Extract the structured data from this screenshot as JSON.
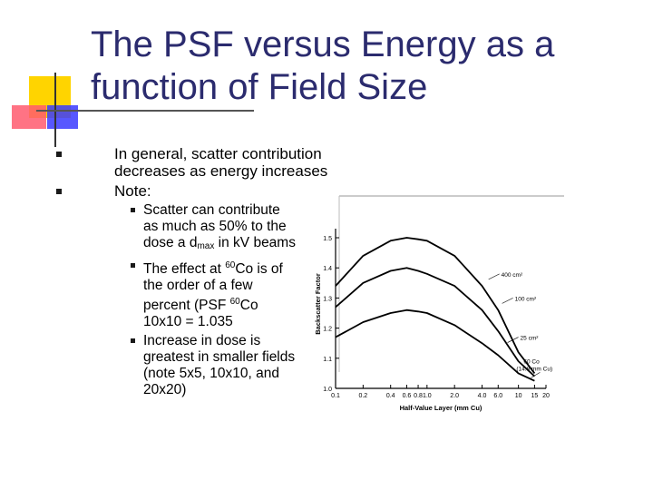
{
  "slide": {
    "title": "The PSF versus Energy as a function of Field Size",
    "colors": {
      "title": "#2b2b6e",
      "deco_yellow": "#ffd400",
      "deco_red": "#ff5a6e",
      "deco_blue": "#3a3aff"
    }
  },
  "bullets": [
    {
      "text": "In general, scatter contribution decreases as energy increases"
    },
    {
      "text": "Note:"
    }
  ],
  "sub_bullets": {
    "b1": {
      "a": "Scatter can contribute as much as 50% to the dose a d",
      "sub": "max",
      "b": " in kV beams"
    },
    "b2": {
      "a": "The effect at ",
      "sup1": "60",
      "b": "Co is of the order of a few percent (PSF ",
      "sup2": "60",
      "c": "Co 10x10 = 1.035"
    },
    "b3": {
      "text": "Increase in dose is greatest in smaller fields (note 5x5, 10x10, and 20x20)"
    }
  },
  "chart_data": {
    "type": "line",
    "xlabel": "Half-Value Layer (mm Cu)",
    "ylabel": "Backscatter Factor",
    "x_scale": "log",
    "xlim": [
      0.1,
      20
    ],
    "ylim": [
      1.0,
      1.5
    ],
    "x_ticks": [
      {
        "v": 0.1,
        "label": "0.1"
      },
      {
        "v": 0.2,
        "label": "0.2"
      },
      {
        "v": 0.4,
        "label": "0.4"
      },
      {
        "v": 0.6,
        "label": "0.6"
      },
      {
        "v": 0.8,
        "label": "0.8"
      },
      {
        "v": 1.0,
        "label": "1.0"
      },
      {
        "v": 2.0,
        "label": "2.0"
      },
      {
        "v": 4.0,
        "label": "4.0"
      },
      {
        "v": 6.0,
        "label": "6.0"
      },
      {
        "v": 10,
        "label": "10"
      },
      {
        "v": 15,
        "label": "15"
      },
      {
        "v": 20,
        "label": "20"
      }
    ],
    "y_ticks": [
      {
        "v": 1.0,
        "label": "1.0"
      },
      {
        "v": 1.1,
        "label": "1.1"
      },
      {
        "v": 1.2,
        "label": "1.2"
      },
      {
        "v": 1.3,
        "label": "1.3"
      },
      {
        "v": 1.4,
        "label": "1.4"
      },
      {
        "v": 1.5,
        "label": "1.5"
      }
    ],
    "series": [
      {
        "name": "400 cm²",
        "x": [
          0.1,
          0.2,
          0.4,
          0.6,
          0.8,
          1.0,
          2.0,
          4.0,
          6.0,
          10,
          15
        ],
        "y": [
          1.34,
          1.44,
          1.49,
          1.5,
          1.495,
          1.49,
          1.44,
          1.34,
          1.26,
          1.12,
          1.05
        ]
      },
      {
        "name": "100 cm²",
        "x": [
          0.1,
          0.2,
          0.4,
          0.6,
          0.8,
          1.0,
          2.0,
          4.0,
          6.0,
          10,
          15
        ],
        "y": [
          1.27,
          1.35,
          1.39,
          1.4,
          1.39,
          1.38,
          1.34,
          1.26,
          1.19,
          1.09,
          1.04
        ]
      },
      {
        "name": "25 cm²",
        "x": [
          0.1,
          0.2,
          0.4,
          0.6,
          0.8,
          1.0,
          2.0,
          4.0,
          6.0,
          10,
          15
        ],
        "y": [
          1.17,
          1.22,
          1.25,
          1.26,
          1.255,
          1.25,
          1.21,
          1.15,
          1.11,
          1.05,
          1.025
        ]
      }
    ],
    "annotation": {
      "label1": "60 Co",
      "label2": "(14.8 mm Cu)",
      "x": 15,
      "y": 1.035
    },
    "curve_labels": [
      {
        "text": "400 cm²",
        "x": 5.4,
        "y": 1.38
      },
      {
        "text": "100 cm²",
        "x": 7.6,
        "y": 1.3
      },
      {
        "text": "25 cm²",
        "x": 8.7,
        "y": 1.17
      }
    ]
  }
}
